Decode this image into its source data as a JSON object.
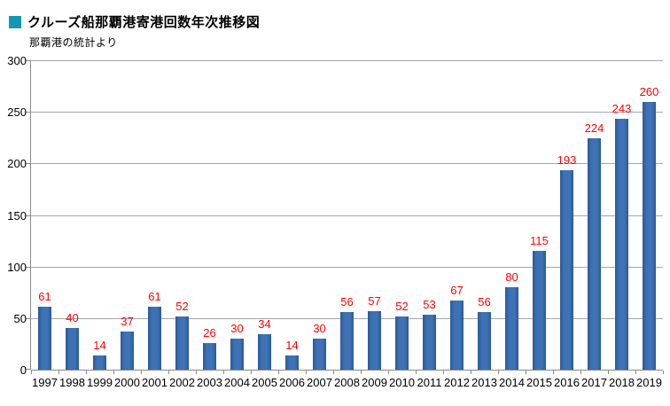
{
  "header": {
    "title": "クルーズ船那覇港寄港回数年次推移図",
    "subtitle": "那覇港の統計より"
  },
  "colors": {
    "title_bullet": "#1596b4",
    "bar_fill": "#3a6fb0",
    "bar_edge": "#2b5a95",
    "value_label": "#ff0000",
    "gridline": "#a6a6a6",
    "axis": "#898989",
    "text": "#000000"
  },
  "chart_data": {
    "type": "bar",
    "title": "クルーズ船那覇港寄港回数年次推移図",
    "subtitle": "那覇港の統計より",
    "categories": [
      "1997",
      "1998",
      "1999",
      "2000",
      "2001",
      "2002",
      "2003",
      "2004",
      "2005",
      "2006",
      "2007",
      "2008",
      "2009",
      "2010",
      "2011",
      "2012",
      "2013",
      "2014",
      "2015",
      "2016",
      "2017",
      "2018",
      "2019"
    ],
    "values": [
      61,
      40,
      14,
      37,
      61,
      52,
      26,
      30,
      34,
      14,
      30,
      56,
      57,
      52,
      53,
      67,
      56,
      80,
      115,
      193,
      224,
      243,
      260
    ],
    "data_labels_shown": true,
    "xlabel": "",
    "ylabel": "",
    "ylim": [
      0,
      300
    ],
    "ytick_step": 50,
    "yticks": [
      0,
      50,
      100,
      150,
      200,
      250,
      300
    ],
    "grid": "horizontal",
    "legend_position": "none"
  }
}
